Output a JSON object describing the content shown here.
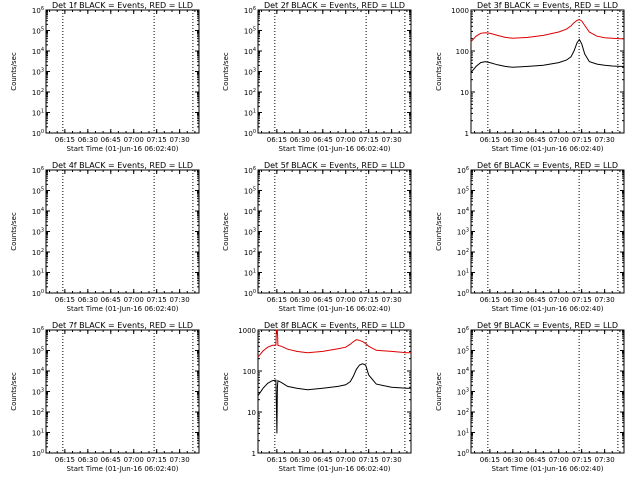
{
  "chart_data": [
    {
      "type": "line",
      "title": "Det 1f BLACK = Events, RED = LLD",
      "xlabel": "Start Time (01-Jun-16 06:02:40)",
      "ylabel": "Counts/sec",
      "xlim": [
        "06:02:40",
        "07:42:40"
      ],
      "x_tick_labels": [
        "06:15",
        "06:30",
        "06:45",
        "07:00",
        "07:15",
        "07:30"
      ],
      "y_scale": "log",
      "ylim": [
        1,
        1000000
      ],
      "y_tick_labels": [
        "10^0",
        "10^1",
        "10^2",
        "10^3",
        "10^4",
        "10^5",
        "10^6"
      ],
      "vertical_dotted_lines": [
        "06:13:40",
        "07:13:20",
        "07:38:40"
      ],
      "series": []
    },
    {
      "type": "line",
      "title": "Det 2f BLACK = Events, RED = LLD",
      "xlabel": "Start Time (01-Jun-16 06:02:40)",
      "ylabel": "Counts/sec",
      "xlim": [
        "06:02:40",
        "07:42:40"
      ],
      "x_tick_labels": [
        "06:15",
        "06:30",
        "06:45",
        "07:00",
        "07:15",
        "07:30"
      ],
      "y_scale": "log",
      "ylim": [
        1,
        1000000
      ],
      "y_tick_labels": [
        "10^0",
        "10^1",
        "10^2",
        "10^3",
        "10^4",
        "10^5",
        "10^6"
      ],
      "vertical_dotted_lines": [
        "06:13:40",
        "07:13:20",
        "07:38:40"
      ],
      "series": []
    },
    {
      "type": "line",
      "title": "Det 3f BLACK = Events, RED = LLD",
      "xlabel": "Start Time (01-Jun-16 06:02:40)",
      "ylabel": "Counts/sec",
      "xlim": [
        "06:02:40",
        "07:42:40"
      ],
      "x_tick_labels": [
        "06:15",
        "06:30",
        "06:45",
        "07:00",
        "07:15",
        "07:30"
      ],
      "y_scale": "log",
      "ylim": [
        1,
        1000
      ],
      "y_tick_labels": [
        "1",
        "10",
        "100",
        "1000"
      ],
      "vertical_dotted_lines": [
        "06:13:40",
        "07:13:20",
        "07:38:40"
      ],
      "series": [
        {
          "color": "#000000",
          "x": [
            "06:02:40",
            "06:06:00",
            "06:09:00",
            "06:12:00",
            "06:15:00",
            "06:20:00",
            "06:25:00",
            "06:30:00",
            "06:40:00",
            "06:50:00",
            "07:00:00",
            "07:05:00",
            "07:08:00",
            "07:10:00",
            "07:12:00",
            "07:13:30",
            "07:15:00",
            "07:17:00",
            "07:20:00",
            "07:25:00",
            "07:30:00",
            "07:35:00",
            "07:40:00",
            "07:42:40"
          ],
          "values": [
            30,
            42,
            52,
            55,
            52,
            46,
            42,
            40,
            42,
            45,
            52,
            60,
            72,
            100,
            160,
            190,
            150,
            85,
            55,
            48,
            45,
            43,
            42,
            42
          ]
        },
        {
          "color": "#dd0000",
          "x": [
            "06:02:40",
            "06:06:00",
            "06:09:00",
            "06:12:00",
            "06:15:00",
            "06:20:00",
            "06:25:00",
            "06:30:00",
            "06:40:00",
            "06:50:00",
            "07:00:00",
            "07:05:00",
            "07:08:00",
            "07:10:00",
            "07:12:00",
            "07:13:30",
            "07:15:00",
            "07:17:00",
            "07:20:00",
            "07:25:00",
            "07:30:00",
            "07:35:00",
            "07:40:00",
            "07:42:40"
          ],
          "values": [
            170,
            230,
            270,
            280,
            270,
            240,
            215,
            205,
            215,
            240,
            290,
            340,
            410,
            490,
            560,
            580,
            540,
            420,
            290,
            230,
            210,
            205,
            200,
            200
          ]
        }
      ]
    },
    {
      "type": "line",
      "title": "Det 4f BLACK = Events, RED = LLD",
      "xlabel": "Start Time (01-Jun-16 06:02:40)",
      "ylabel": "Counts/sec",
      "xlim": [
        "06:02:40",
        "07:42:40"
      ],
      "x_tick_labels": [
        "06:15",
        "06:30",
        "06:45",
        "07:00",
        "07:15",
        "07:30"
      ],
      "y_scale": "log",
      "ylim": [
        1,
        1000000
      ],
      "y_tick_labels": [
        "10^0",
        "10^1",
        "10^2",
        "10^3",
        "10^4",
        "10^5",
        "10^6"
      ],
      "vertical_dotted_lines": [
        "06:13:40",
        "07:13:20",
        "07:38:40"
      ],
      "series": []
    },
    {
      "type": "line",
      "title": "Det 5f BLACK = Events, RED = LLD",
      "xlabel": "Start Time (01-Jun-16 06:02:40)",
      "ylabel": "Counts/sec",
      "xlim": [
        "06:02:40",
        "07:42:40"
      ],
      "x_tick_labels": [
        "06:15",
        "06:30",
        "06:45",
        "07:00",
        "07:15",
        "07:30"
      ],
      "y_scale": "log",
      "ylim": [
        1,
        1000000
      ],
      "y_tick_labels": [
        "10^0",
        "10^1",
        "10^2",
        "10^3",
        "10^4",
        "10^5",
        "10^6"
      ],
      "vertical_dotted_lines": [
        "06:13:40",
        "07:13:20",
        "07:38:40"
      ],
      "series": []
    },
    {
      "type": "line",
      "title": "Det 6f BLACK = Events, RED = LLD",
      "xlabel": "Start Time (01-Jun-16 06:02:40)",
      "ylabel": "Counts/sec",
      "xlim": [
        "06:02:40",
        "07:42:40"
      ],
      "x_tick_labels": [
        "06:15",
        "06:30",
        "06:45",
        "07:00",
        "07:15",
        "07:30"
      ],
      "y_scale": "log",
      "ylim": [
        1,
        1000000
      ],
      "y_tick_labels": [
        "10^0",
        "10^1",
        "10^2",
        "10^3",
        "10^4",
        "10^5",
        "10^6"
      ],
      "vertical_dotted_lines": [
        "06:13:40",
        "07:13:20",
        "07:38:40"
      ],
      "series": []
    },
    {
      "type": "line",
      "title": "Det 7f BLACK = Events, RED = LLD",
      "xlabel": "Start Time (01-Jun-16 06:02:40)",
      "ylabel": "Counts/sec",
      "xlim": [
        "06:02:40",
        "07:42:40"
      ],
      "x_tick_labels": [
        "06:15",
        "06:30",
        "06:45",
        "07:00",
        "07:15",
        "07:30"
      ],
      "y_scale": "log",
      "ylim": [
        1,
        1000000
      ],
      "y_tick_labels": [
        "10^0",
        "10^1",
        "10^2",
        "10^3",
        "10^4",
        "10^5",
        "10^6"
      ],
      "vertical_dotted_lines": [
        "06:13:40",
        "07:13:20",
        "07:38:40"
      ],
      "series": []
    },
    {
      "type": "line",
      "title": "Det 8f BLACK = Events, RED = LLD",
      "xlabel": "Start Time (01-Jun-16 06:02:40)",
      "ylabel": "Counts/sec",
      "xlim": [
        "06:02:40",
        "07:42:40"
      ],
      "x_tick_labels": [
        "06:15",
        "06:30",
        "06:45",
        "07:00",
        "07:15",
        "07:30"
      ],
      "y_scale": "log",
      "ylim": [
        1,
        1000
      ],
      "y_tick_labels": [
        "1",
        "10",
        "100",
        "1000"
      ],
      "vertical_dotted_lines": [
        "06:13:40",
        "07:13:20",
        "07:38:40"
      ],
      "series": [
        {
          "color": "#000000",
          "x": [
            "06:02:40",
            "06:06:00",
            "06:09:00",
            "06:12:00",
            "06:14:20",
            "06:14:40",
            "06:15:00",
            "06:15:20",
            "06:15:40",
            "06:18:00",
            "06:22:00",
            "06:28:00",
            "06:35:00",
            "06:45:00",
            "06:55:00",
            "07:00:00",
            "07:03:00",
            "07:05:00",
            "07:07:00",
            "07:09:00",
            "07:11:00",
            "07:13:00",
            "07:15:00",
            "07:20:00",
            "07:30:00",
            "07:40:00",
            "07:42:40"
          ],
          "values": [
            25,
            38,
            50,
            58,
            60,
            15,
            3,
            40,
            58,
            52,
            42,
            38,
            35,
            38,
            42,
            46,
            55,
            75,
            110,
            140,
            150,
            140,
            80,
            48,
            40,
            38,
            38
          ]
        },
        {
          "color": "#dd0000",
          "x": [
            "06:02:40",
            "06:06:00",
            "06:09:00",
            "06:12:00",
            "06:14:20",
            "06:14:40",
            "06:15:00",
            "06:15:20",
            "06:15:40",
            "06:18:00",
            "06:22:00",
            "06:28:00",
            "06:35:00",
            "06:45:00",
            "06:55:00",
            "07:00:00",
            "07:03:00",
            "07:05:00",
            "07:07:00",
            "07:09:00",
            "07:11:00",
            "07:13:00",
            "07:15:00",
            "07:20:00",
            "07:30:00",
            "07:40:00",
            "07:42:40"
          ],
          "values": [
            220,
            310,
            380,
            420,
            430,
            1000,
            1000,
            1000,
            420,
            400,
            340,
            300,
            280,
            300,
            350,
            380,
            450,
            520,
            580,
            560,
            520,
            470,
            400,
            320,
            300,
            280,
            280
          ]
        }
      ]
    },
    {
      "type": "line",
      "title": "Det 9f BLACK = Events, RED = LLD",
      "xlabel": "Start Time (01-Jun-16 06:02:40)",
      "ylabel": "Counts/sec",
      "xlim": [
        "06:02:40",
        "07:42:40"
      ],
      "x_tick_labels": [
        "06:15",
        "06:30",
        "06:45",
        "07:00",
        "07:15",
        "07:30"
      ],
      "y_scale": "log",
      "ylim": [
        1,
        1000000
      ],
      "y_tick_labels": [
        "10^0",
        "10^1",
        "10^2",
        "10^3",
        "10^4",
        "10^5",
        "10^6"
      ],
      "vertical_dotted_lines": [
        "06:13:40",
        "07:13:20",
        "07:38:40"
      ],
      "series": []
    }
  ]
}
